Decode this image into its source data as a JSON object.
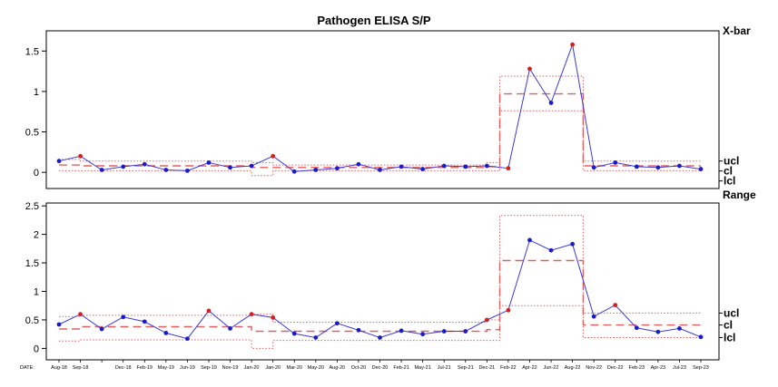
{
  "chart_data": {
    "type": "line",
    "title": "Pathogen ELISA S/P",
    "date_axis_label": "DATE:",
    "x": [
      "Aug-18",
      "Sep-18",
      "",
      "Dec-18",
      "Feb-19",
      "May-19",
      "Jun-19",
      "Sep-19",
      "Nov-19",
      "Jan-20",
      "Jan-20",
      "Mar-20",
      "May-20",
      "Aug-20",
      "Oct-20",
      "Dec-20",
      "Feb-21",
      "May-21",
      "Jul-21",
      "Sep-21",
      "Dec-21",
      "Feb-22",
      "Apr-22",
      "Jun-22",
      "Aug-22",
      "Nov-22",
      "Dec-22",
      "Feb-23",
      "Apr-23",
      "Jul-23",
      "Sep-23"
    ],
    "charts": [
      {
        "name": "xbar",
        "side_label": "X-bar",
        "ylim": [
          -0.2,
          1.75
        ],
        "yticks": [
          "0",
          "0.5",
          "1",
          "1.5"
        ],
        "values": [
          0.14,
          0.2,
          0.03,
          0.07,
          0.1,
          0.03,
          0.02,
          0.12,
          0.06,
          0.08,
          0.2,
          0.01,
          0.03,
          0.05,
          0.1,
          0.03,
          0.07,
          0.04,
          0.08,
          0.07,
          0.08,
          0.05,
          1.28,
          0.86,
          1.58,
          0.06,
          0.12,
          0.07,
          0.06,
          0.08,
          0.04
        ],
        "out_of_control": [
          1,
          10,
          21,
          22,
          24
        ],
        "limit_labels": [
          "ucl",
          "cl",
          "lcl"
        ],
        "segments": [
          {
            "from": 0,
            "to": 1,
            "ucl": 0.16,
            "cl": 0.09,
            "lcl": 0.02
          },
          {
            "from": 1,
            "to": 9,
            "ucl": 0.14,
            "cl": 0.08,
            "lcl": 0.02
          },
          {
            "from": 9,
            "to": 10,
            "ucl": 0.12,
            "cl": 0.06,
            "lcl": -0.04
          },
          {
            "from": 10,
            "to": 20,
            "ucl": 0.09,
            "cl": 0.06,
            "lcl": 0.02
          },
          {
            "from": 20,
            "to": 20.6,
            "ucl": 0.12,
            "cl": 0.07,
            "lcl": 0.02
          },
          {
            "from": 20.6,
            "to": 24.5,
            "ucl": 1.19,
            "cl": 0.97,
            "lcl": 0.76
          },
          {
            "from": 24.5,
            "to": 30,
            "ucl": 0.14,
            "cl": 0.08,
            "lcl": 0.02
          }
        ]
      },
      {
        "name": "range",
        "side_label": "Range",
        "ylim": [
          -0.2,
          2.55
        ],
        "yticks": [
          "0",
          "0.5",
          "1",
          "1.5",
          "2",
          "2.5"
        ],
        "values": [
          0.42,
          0.6,
          0.34,
          0.55,
          0.47,
          0.27,
          0.17,
          0.66,
          0.35,
          0.6,
          0.54,
          0.26,
          0.19,
          0.44,
          0.32,
          0.19,
          0.31,
          0.25,
          0.3,
          0.3,
          0.5,
          0.67,
          1.9,
          1.72,
          1.83,
          0.56,
          0.76,
          0.36,
          0.29,
          0.35,
          0.2
        ],
        "out_of_control": [
          1,
          7,
          9,
          10,
          20,
          21,
          26
        ],
        "limit_labels": [
          "ucl",
          "cl",
          "lcl"
        ],
        "segments": [
          {
            "from": 0,
            "to": 1,
            "ucl": 0.56,
            "cl": 0.34,
            "lcl": 0.13
          },
          {
            "from": 1,
            "to": 9,
            "ucl": 0.58,
            "cl": 0.38,
            "lcl": 0.15
          },
          {
            "from": 9,
            "to": 10,
            "ucl": 0.6,
            "cl": 0.3,
            "lcl": 0.0
          },
          {
            "from": 10,
            "to": 20,
            "ucl": 0.46,
            "cl": 0.3,
            "lcl": 0.14
          },
          {
            "from": 20,
            "to": 20.6,
            "ucl": 0.5,
            "cl": 0.33,
            "lcl": 0.14
          },
          {
            "from": 20.6,
            "to": 24.5,
            "ucl": 2.33,
            "cl": 1.54,
            "lcl": 0.75
          },
          {
            "from": 24.5,
            "to": 30,
            "ucl": 0.62,
            "cl": 0.41,
            "lcl": 0.19
          }
        ]
      }
    ],
    "colors": {
      "line": "#3a3ad8",
      "point": "#1b1bc8",
      "point_out": "#d42020",
      "limits": "#e06060",
      "frame": "#000000"
    }
  }
}
